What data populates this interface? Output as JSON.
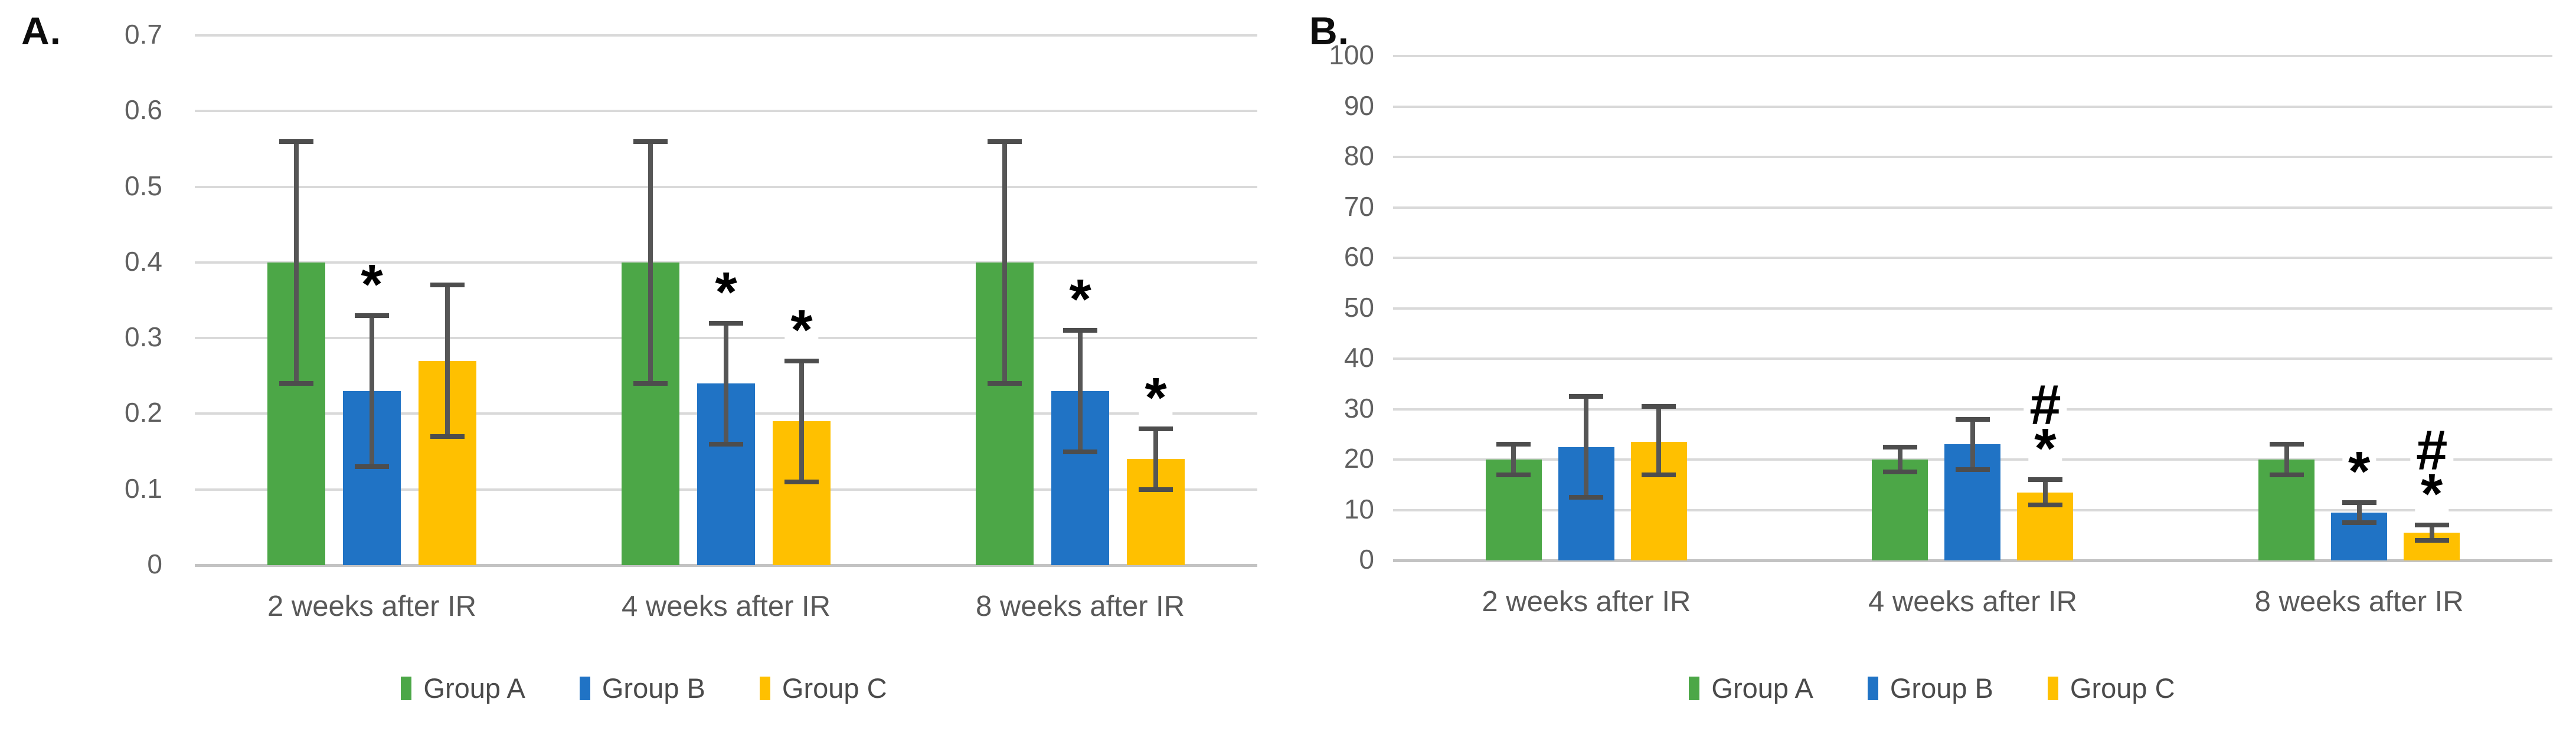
{
  "figure_title": "",
  "chart_data": [
    {
      "type": "bar",
      "panel_label": "A.",
      "title": "",
      "xlabel": "",
      "ylabel": "",
      "ylim": [
        0,
        0.7
      ],
      "y_tick_step": 0.1,
      "y_ticks": [
        "0.7",
        "0.6",
        "0.5",
        "0.4",
        "0.3",
        "0.2",
        "0.1",
        "0"
      ],
      "grid": true,
      "legend_position": "bottom",
      "categories": [
        "2 weeks after IR",
        "4 weeks after IR",
        "8 weeks after IR"
      ],
      "series": [
        {
          "name": "Group A",
          "color": "#4CA747",
          "values": [
            0.4,
            0.4,
            0.4
          ],
          "err_low": [
            0.24,
            0.24,
            0.24
          ],
          "err_high": [
            0.56,
            0.56,
            0.56
          ],
          "annotations": [
            [],
            [],
            []
          ]
        },
        {
          "name": "Group B",
          "color": "#2073C5",
          "values": [
            0.23,
            0.24,
            0.23
          ],
          "err_low": [
            0.13,
            0.16,
            0.15
          ],
          "err_high": [
            0.33,
            0.32,
            0.31
          ],
          "annotations": [
            [
              "*"
            ],
            [
              "*"
            ],
            [
              "*"
            ]
          ]
        },
        {
          "name": "Group C",
          "color": "#FFC000",
          "values": [
            0.27,
            0.19,
            0.14
          ],
          "err_low": [
            0.17,
            0.11,
            0.1
          ],
          "err_high": [
            0.37,
            0.27,
            0.18
          ],
          "annotations": [
            [],
            [
              "*"
            ],
            [
              "*"
            ]
          ]
        }
      ]
    },
    {
      "type": "bar",
      "panel_label": "B.",
      "title": "",
      "xlabel": "",
      "ylabel": "",
      "ylim": [
        0,
        100
      ],
      "y_tick_step": 10,
      "y_ticks": [
        "100",
        "90",
        "80",
        "70",
        "60",
        "50",
        "40",
        "30",
        "20",
        "10",
        "0"
      ],
      "grid": true,
      "legend_position": "bottom",
      "categories": [
        "2 weeks after IR",
        "4 weeks after IR",
        "8 weeks after IR"
      ],
      "series": [
        {
          "name": "Group A",
          "color": "#4CA747",
          "values": [
            20,
            20,
            20
          ],
          "err_low": [
            17,
            17.5,
            17
          ],
          "err_high": [
            23,
            22.5,
            23
          ],
          "annotations": [
            [],
            [],
            []
          ]
        },
        {
          "name": "Group B",
          "color": "#2073C5",
          "values": [
            22.5,
            23,
            9.5
          ],
          "err_low": [
            12.5,
            18,
            7.5
          ],
          "err_high": [
            32.5,
            28,
            11.5
          ],
          "annotations": [
            [],
            [],
            [
              "*"
            ]
          ]
        },
        {
          "name": "Group C",
          "color": "#FFC000",
          "values": [
            23.5,
            13.5,
            5.5
          ],
          "err_low": [
            17,
            11,
            4
          ],
          "err_high": [
            30.5,
            16,
            7
          ],
          "annotations": [
            [],
            [
              "#",
              "*"
            ],
            [
              "#",
              "*"
            ]
          ]
        }
      ]
    }
  ],
  "legend": {
    "items": [
      {
        "label": "Group A",
        "color": "#4CA747"
      },
      {
        "label": "Group B",
        "color": "#2073C5"
      },
      {
        "label": "Group C",
        "color": "#FFC000"
      }
    ]
  },
  "style_colors": {
    "gridline": "#d9d9d9",
    "axis_baseline": "#c3c3c3",
    "error_bar": "#565656",
    "axis_text": "#606060",
    "category_text": "#595959",
    "annotation_text": "#000000"
  }
}
